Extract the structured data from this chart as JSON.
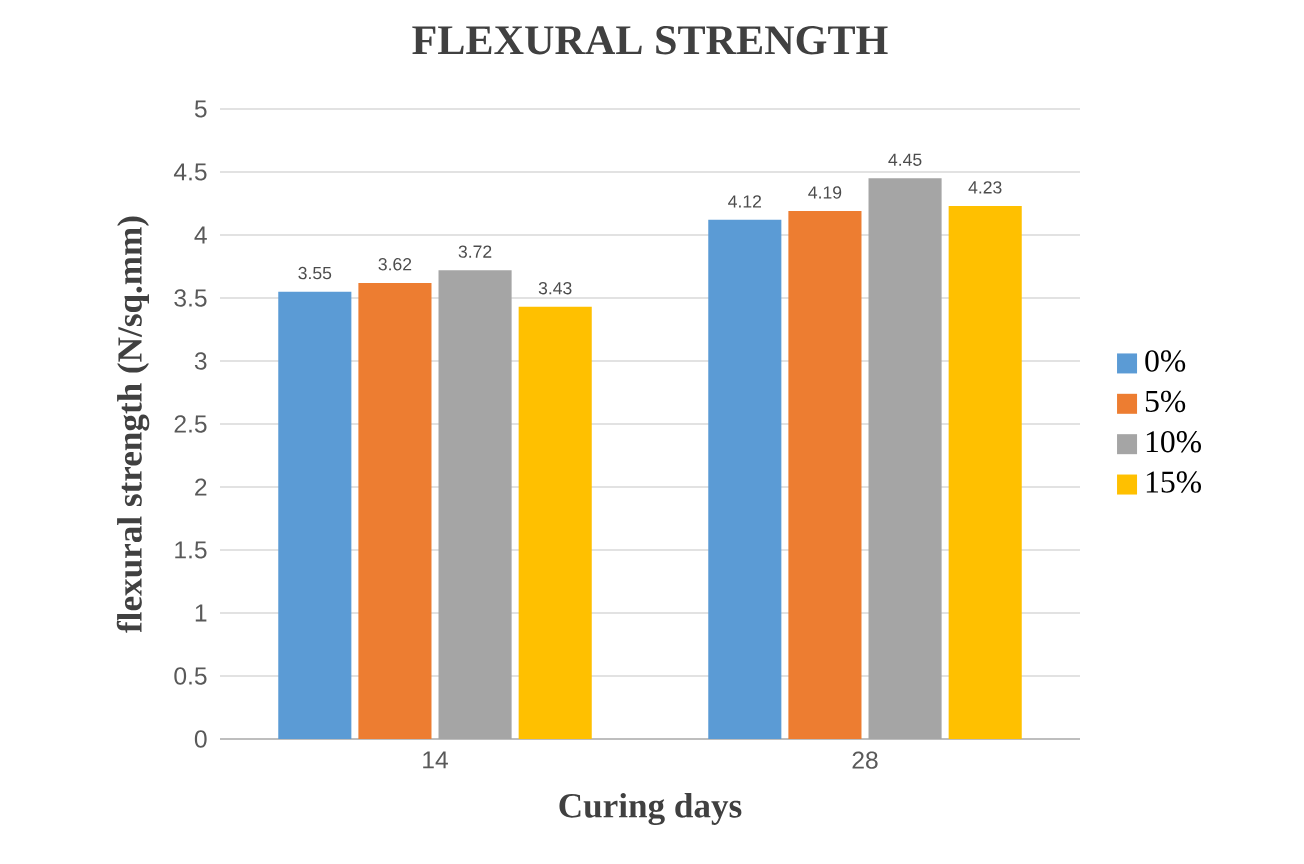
{
  "chart_data": {
    "type": "bar",
    "title": "FLEXURAL STRENGTH",
    "xlabel": "Curing days",
    "ylabel": "flexural strength (N/sq.mm)",
    "categories": [
      "14",
      "28"
    ],
    "series": [
      {
        "name": "0%",
        "color": "#5b9bd5",
        "values": [
          3.55,
          4.12
        ]
      },
      {
        "name": "5%",
        "color": "#ed7d31",
        "values": [
          3.62,
          4.19
        ]
      },
      {
        "name": "10%",
        "color": "#a5a5a5",
        "values": [
          3.72,
          4.45
        ]
      },
      {
        "name": "15%",
        "color": "#ffc000",
        "values": [
          3.43,
          4.23
        ]
      }
    ],
    "ylim": [
      0,
      5
    ],
    "yticks": [
      0,
      0.5,
      1,
      1.5,
      2,
      2.5,
      3,
      3.5,
      4,
      4.5,
      5
    ],
    "grid": "y",
    "legend": "right",
    "data_labels": true
  }
}
